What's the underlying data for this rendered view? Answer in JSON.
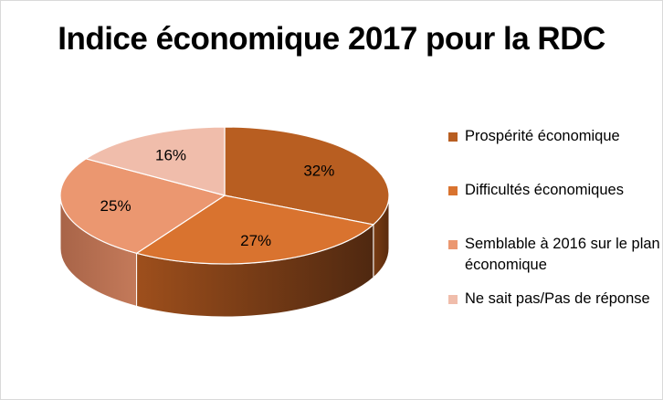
{
  "chart_data": {
    "type": "pie",
    "title": "Indice économique 2017 pour la  RDC",
    "labels": [
      "Prospérité économique",
      "Difficultés économiques",
      "Semblable à 2016 sur le plan économique",
      "Ne sait pas/Pas de réponse"
    ],
    "values": [
      32,
      27,
      25,
      16
    ],
    "data_labels": [
      "32%",
      "27%",
      "25%",
      "16%"
    ],
    "colors": [
      "#b85e21",
      "#d9732f",
      "#eb9770",
      "#f0bdab"
    ],
    "side_colors": [
      [
        "#7a3d14",
        "#5a2b0e"
      ],
      [
        "#9e4f1c",
        "#4f2810"
      ],
      [
        "#c47a5a",
        "#a86448"
      ],
      [
        "#d6a08e",
        "#b68070"
      ]
    ],
    "legend_position": "right",
    "style": "3d"
  }
}
